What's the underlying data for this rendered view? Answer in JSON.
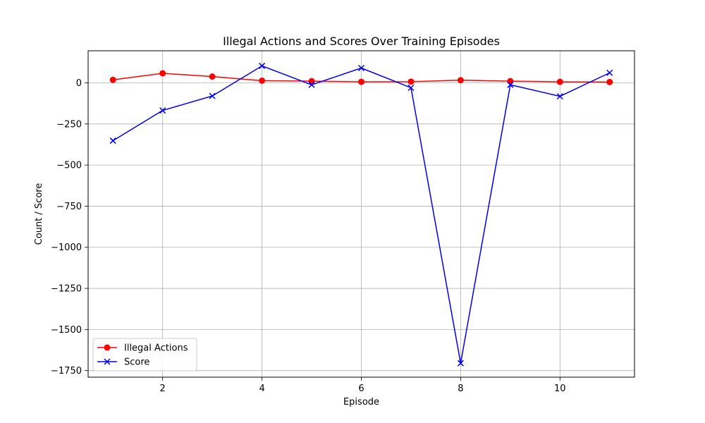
{
  "chart_data": {
    "type": "line",
    "title": "Illegal Actions and Scores Over Training Episodes",
    "xlabel": "Episode",
    "ylabel": "Count / Score",
    "x": [
      1,
      2,
      3,
      4,
      5,
      6,
      7,
      8,
      9,
      10,
      11
    ],
    "xlim": [
      0.5,
      11.5
    ],
    "ylim": [
      -1790,
      195
    ],
    "xticks": [
      2,
      4,
      6,
      8,
      10
    ],
    "yticks": [
      0,
      -250,
      -500,
      -750,
      -1000,
      -1250,
      -1500,
      -1750
    ],
    "ytick_labels": [
      "0",
      "−250",
      "−500",
      "−750",
      "−1000",
      "−1250",
      "−1500",
      "−1750"
    ],
    "grid": true,
    "legend_position": "lower-left",
    "series": [
      {
        "name": "Illegal Actions",
        "color": "#ff0000",
        "marker": "circle",
        "values": [
          18,
          58,
          38,
          13,
          10,
          6,
          7,
          16,
          10,
          6,
          5
        ]
      },
      {
        "name": "Score",
        "color": "#0000ee",
        "marker": "x",
        "values": [
          -352,
          -168,
          -80,
          103,
          -12,
          90,
          -30,
          -1705,
          -12,
          -82,
          61
        ]
      }
    ]
  }
}
